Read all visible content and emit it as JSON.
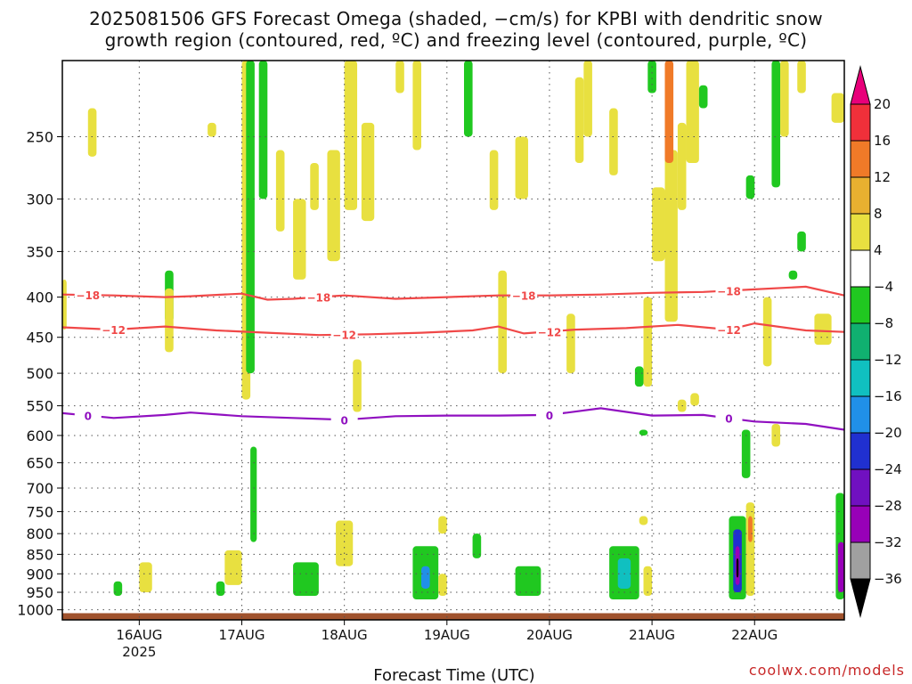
{
  "title": {
    "line1": "2025081506 GFS Forecast Omega (shaded, −cm/s) for KPBI with dendritic snow",
    "line2": "growth region (contoured, red, ºC) and freezing level (contoured, purple, ºC)"
  },
  "xlabel": "Forecast Time (UTC)",
  "credit": "coolwx.com/models",
  "chart_data": {
    "type": "heatmap",
    "title": "2025081506 GFS Forecast Omega (shaded, −cm/s) for KPBI with dendritic snow growth region (contoured, red, ºC) and freezing level (contoured, purple, ºC)",
    "xlabel": "Forecast Time (UTC)",
    "ylabel": "",
    "x_axis": {
      "type": "time",
      "range": [
        "2025-08-15T06:00",
        "2025-08-22T21:00"
      ],
      "tick_labels": [
        "16AUG",
        "17AUG",
        "18AUG",
        "19AUG",
        "20AUG",
        "21AUG",
        "22AUG"
      ],
      "tick_values": [
        "2025-08-16T00:00",
        "2025-08-17T00:00",
        "2025-08-18T00:00",
        "2025-08-19T00:00",
        "2025-08-20T00:00",
        "2025-08-21T00:00",
        "2025-08-22T00:00"
      ],
      "year_label": "2025"
    },
    "y_axis": {
      "type": "log-pressure",
      "units": "hPa",
      "range": [
        1030,
        200
      ],
      "tick_labels": [
        "250",
        "300",
        "350",
        "400",
        "450",
        "500",
        "550",
        "600",
        "650",
        "700",
        "750",
        "800",
        "850",
        "900",
        "950",
        "1000"
      ],
      "tick_values": [
        250,
        300,
        350,
        400,
        450,
        500,
        550,
        600,
        650,
        700,
        750,
        800,
        850,
        900,
        950,
        1000
      ]
    },
    "grid": true,
    "colorbar": {
      "labels": [
        "20",
        "16",
        "12",
        "8",
        "4",
        "−4",
        "−8",
        "−12",
        "−16",
        "−20",
        "−24",
        "−28",
        "−32",
        "−36"
      ],
      "colors": [
        "#e8007a",
        "#f0303a",
        "#f07a28",
        "#e8b030",
        "#e8e040",
        "#ffffff",
        "#20c820",
        "#10b070",
        "#10c0c0",
        "#2090e8",
        "#2030d0",
        "#7010c0",
        "#9800b8",
        "#a0a0a0",
        "#000000"
      ],
      "extend": "both"
    },
    "contours": [
      {
        "name": "-18",
        "color": "#f04848",
        "level_label": "−18",
        "points": [
          [
            "2025-08-15T06:00",
            397
          ],
          [
            "2025-08-15T18:00",
            398
          ],
          [
            "2025-08-16T06:00",
            400
          ],
          [
            "2025-08-16T12:00",
            399
          ],
          [
            "2025-08-17T00:00",
            396
          ],
          [
            "2025-08-17T06:00",
            403
          ],
          [
            "2025-08-17T12:00",
            402
          ],
          [
            "2025-08-18T00:00",
            398
          ],
          [
            "2025-08-18T12:00",
            402
          ],
          [
            "2025-08-19T00:00",
            400
          ],
          [
            "2025-08-19T12:00",
            398
          ],
          [
            "2025-08-20T00:00",
            398
          ],
          [
            "2025-08-20T12:00",
            397
          ],
          [
            "2025-08-21T00:00",
            395
          ],
          [
            "2025-08-21T12:00",
            394
          ],
          [
            "2025-08-22T00:00",
            391
          ],
          [
            "2025-08-22T12:00",
            388
          ],
          [
            "2025-08-22T21:00",
            398
          ]
        ],
        "labels_at": [
          "2025-08-15T12:00",
          "2025-08-17T18:00",
          "2025-08-19T18:00",
          "2025-08-21T18:00"
        ]
      },
      {
        "name": "-12",
        "color": "#f04848",
        "level_label": "−12",
        "points": [
          [
            "2025-08-15T06:00",
            437
          ],
          [
            "2025-08-15T18:00",
            440
          ],
          [
            "2025-08-16T06:00",
            436
          ],
          [
            "2025-08-16T18:00",
            441
          ],
          [
            "2025-08-17T06:00",
            444
          ],
          [
            "2025-08-17T18:00",
            447
          ],
          [
            "2025-08-18T06:00",
            446
          ],
          [
            "2025-08-18T18:00",
            444
          ],
          [
            "2025-08-19T06:00",
            441
          ],
          [
            "2025-08-19T12:00",
            436
          ],
          [
            "2025-08-19T18:00",
            445
          ],
          [
            "2025-08-20T06:00",
            440
          ],
          [
            "2025-08-20T18:00",
            438
          ],
          [
            "2025-08-21T06:00",
            434
          ],
          [
            "2025-08-21T18:00",
            440
          ],
          [
            "2025-08-22T00:00",
            432
          ],
          [
            "2025-08-22T12:00",
            441
          ],
          [
            "2025-08-22T21:00",
            443
          ]
        ],
        "labels_at": [
          "2025-08-15T18:00",
          "2025-08-18T00:00",
          "2025-08-20T00:00",
          "2025-08-21T18:00"
        ]
      },
      {
        "name": "0",
        "color": "#9010c0",
        "level_label": "0",
        "points": [
          [
            "2025-08-15T06:00",
            562
          ],
          [
            "2025-08-15T18:00",
            570
          ],
          [
            "2025-08-16T06:00",
            565
          ],
          [
            "2025-08-16T12:00",
            561
          ],
          [
            "2025-08-17T00:00",
            567
          ],
          [
            "2025-08-17T12:00",
            570
          ],
          [
            "2025-08-18T00:00",
            573
          ],
          [
            "2025-08-18T12:00",
            567
          ],
          [
            "2025-08-19T00:00",
            566
          ],
          [
            "2025-08-19T12:00",
            566
          ],
          [
            "2025-08-20T00:00",
            565
          ],
          [
            "2025-08-20T12:00",
            554
          ],
          [
            "2025-08-21T00:00",
            566
          ],
          [
            "2025-08-21T12:00",
            565
          ],
          [
            "2025-08-22T00:00",
            576
          ],
          [
            "2025-08-22T12:00",
            580
          ],
          [
            "2025-08-22T21:00",
            590
          ]
        ],
        "labels_at": [
          "2025-08-15T12:00",
          "2025-08-18T00:00",
          "2025-08-20T00:00",
          "2025-08-21T18:00"
        ]
      }
    ],
    "shaded_regions": [
      {
        "t0": "2025-08-16T16:00",
        "t1": "2025-08-16T18:00",
        "p0": 250,
        "p1": 240,
        "color": "#e8e040"
      },
      {
        "t0": "2025-08-15T12:00",
        "t1": "2025-08-15T14:00",
        "p0": 265,
        "p1": 230,
        "color": "#e8e040"
      },
      {
        "t0": "2025-08-16T06:00",
        "t1": "2025-08-16T08:00",
        "p0": 430,
        "p1": 370,
        "color": "#20c820"
      },
      {
        "t0": "2025-08-16T06:00",
        "t1": "2025-08-16T08:00",
        "p0": 470,
        "p1": 390,
        "color": "#e8e040"
      },
      {
        "t0": "2025-08-17T00:00",
        "t1": "2025-08-17T02:00",
        "p0": 540,
        "p1": 200,
        "color": "#e8e040"
      },
      {
        "t0": "2025-08-17T01:00",
        "t1": "2025-08-17T03:00",
        "p0": 500,
        "p1": 200,
        "color": "#20c820"
      },
      {
        "t0": "2025-08-17T02:00",
        "t1": "2025-08-17T03:30",
        "p0": 820,
        "p1": 620,
        "color": "#20c820"
      },
      {
        "t0": "2025-08-17T04:00",
        "t1": "2025-08-17T06:00",
        "p0": 300,
        "p1": 200,
        "color": "#20c820"
      },
      {
        "t0": "2025-08-17T08:00",
        "t1": "2025-08-17T10:00",
        "p0": 330,
        "p1": 260,
        "color": "#e8e040"
      },
      {
        "t0": "2025-08-17T12:00",
        "t1": "2025-08-17T15:00",
        "p0": 380,
        "p1": 300,
        "color": "#e8e040"
      },
      {
        "t0": "2025-08-17T16:00",
        "t1": "2025-08-17T18:00",
        "p0": 310,
        "p1": 270,
        "color": "#e8e040"
      },
      {
        "t0": "2025-08-17T20:00",
        "t1": "2025-08-17T23:00",
        "p0": 360,
        "p1": 260,
        "color": "#e8e040"
      },
      {
        "t0": "2025-08-18T00:00",
        "t1": "2025-08-18T03:00",
        "p0": 310,
        "p1": 200,
        "color": "#e8e040"
      },
      {
        "t0": "2025-08-18T04:00",
        "t1": "2025-08-18T07:00",
        "p0": 320,
        "p1": 240,
        "color": "#e8e040"
      },
      {
        "t0": "2025-08-18T02:00",
        "t1": "2025-08-18T04:00",
        "p0": 560,
        "p1": 480,
        "color": "#e8e040"
      },
      {
        "t0": "2025-08-18T12:00",
        "t1": "2025-08-18T14:00",
        "p0": 220,
        "p1": 200,
        "color": "#e8e040"
      },
      {
        "t0": "2025-08-18T16:00",
        "t1": "2025-08-18T18:00",
        "p0": 260,
        "p1": 200,
        "color": "#e8e040"
      },
      {
        "t0": "2025-08-19T04:00",
        "t1": "2025-08-19T06:00",
        "p0": 250,
        "p1": 200,
        "color": "#20c820"
      },
      {
        "t0": "2025-08-19T10:00",
        "t1": "2025-08-19T12:00",
        "p0": 310,
        "p1": 260,
        "color": "#e8e040"
      },
      {
        "t0": "2025-08-19T12:00",
        "t1": "2025-08-19T14:00",
        "p0": 500,
        "p1": 370,
        "color": "#e8e040"
      },
      {
        "t0": "2025-08-19T16:00",
        "t1": "2025-08-19T19:00",
        "p0": 300,
        "p1": 250,
        "color": "#e8e040"
      },
      {
        "t0": "2025-08-20T04:00",
        "t1": "2025-08-20T06:00",
        "p0": 500,
        "p1": 420,
        "color": "#e8e040"
      },
      {
        "t0": "2025-08-20T06:00",
        "t1": "2025-08-20T08:00",
        "p0": 270,
        "p1": 210,
        "color": "#e8e040"
      },
      {
        "t0": "2025-08-20T08:00",
        "t1": "2025-08-20T10:00",
        "p0": 250,
        "p1": 200,
        "color": "#e8e040"
      },
      {
        "t0": "2025-08-20T14:00",
        "t1": "2025-08-20T16:00",
        "p0": 280,
        "p1": 230,
        "color": "#e8e040"
      },
      {
        "t0": "2025-08-20T20:00",
        "t1": "2025-08-20T22:00",
        "p0": 520,
        "p1": 490,
        "color": "#20c820"
      },
      {
        "t0": "2025-08-20T21:00",
        "t1": "2025-08-20T23:00",
        "p0": 600,
        "p1": 590,
        "color": "#20c820"
      },
      {
        "t0": "2025-08-20T22:00",
        "t1": "2025-08-21T00:00",
        "p0": 520,
        "p1": 400,
        "color": "#e8e040"
      },
      {
        "t0": "2025-08-20T23:00",
        "t1": "2025-08-21T01:00",
        "p0": 220,
        "p1": 200,
        "color": "#20c820"
      },
      {
        "t0": "2025-08-21T00:00",
        "t1": "2025-08-21T03:00",
        "p0": 360,
        "p1": 290,
        "color": "#e8e040"
      },
      {
        "t0": "2025-08-21T03:00",
        "t1": "2025-08-21T06:00",
        "p0": 430,
        "p1": 260,
        "color": "#e8e040"
      },
      {
        "t0": "2025-08-21T06:00",
        "t1": "2025-08-21T08:00",
        "p0": 310,
        "p1": 240,
        "color": "#e8e040"
      },
      {
        "t0": "2025-08-21T08:00",
        "t1": "2025-08-21T11:00",
        "p0": 270,
        "p1": 200,
        "color": "#e8e040"
      },
      {
        "t0": "2025-08-21T03:00",
        "t1": "2025-08-21T05:00",
        "p0": 270,
        "p1": 200,
        "color": "#f07a28"
      },
      {
        "t0": "2025-08-21T06:00",
        "t1": "2025-08-21T08:00",
        "p0": 560,
        "p1": 540,
        "color": "#e8e040"
      },
      {
        "t0": "2025-08-21T09:00",
        "t1": "2025-08-21T11:00",
        "p0": 550,
        "p1": 530,
        "color": "#e8e040"
      },
      {
        "t0": "2025-08-21T11:00",
        "t1": "2025-08-21T13:00",
        "p0": 230,
        "p1": 215,
        "color": "#20c820"
      },
      {
        "t0": "2025-08-21T22:00",
        "t1": "2025-08-22T00:00",
        "p0": 300,
        "p1": 280,
        "color": "#20c820"
      },
      {
        "t0": "2025-08-21T21:00",
        "t1": "2025-08-21T23:00",
        "p0": 680,
        "p1": 590,
        "color": "#20c820"
      },
      {
        "t0": "2025-08-22T02:00",
        "t1": "2025-08-22T04:00",
        "p0": 490,
        "p1": 400,
        "color": "#e8e040"
      },
      {
        "t0": "2025-08-22T04:00",
        "t1": "2025-08-22T06:00",
        "p0": 290,
        "p1": 200,
        "color": "#20c820"
      },
      {
        "t0": "2025-08-22T06:00",
        "t1": "2025-08-22T08:00",
        "p0": 250,
        "p1": 200,
        "color": "#e8e040"
      },
      {
        "t0": "2025-08-22T04:00",
        "t1": "2025-08-22T06:00",
        "p0": 620,
        "p1": 580,
        "color": "#e8e040"
      },
      {
        "t0": "2025-08-22T08:00",
        "t1": "2025-08-22T10:00",
        "p0": 380,
        "p1": 370,
        "color": "#20c820"
      },
      {
        "t0": "2025-08-22T10:00",
        "t1": "2025-08-22T12:00",
        "p0": 350,
        "p1": 330,
        "color": "#20c820"
      },
      {
        "t0": "2025-08-22T14:00",
        "t1": "2025-08-22T18:00",
        "p0": 460,
        "p1": 420,
        "color": "#e8e040"
      },
      {
        "t0": "2025-08-22T10:00",
        "t1": "2025-08-22T12:00",
        "p0": 220,
        "p1": 200,
        "color": "#e8e040"
      },
      {
        "t0": "2025-08-22T18:00",
        "t1": "2025-08-22T21:00",
        "p0": 240,
        "p1": 220,
        "color": "#e8e040"
      },
      {
        "t0": "2025-08-15T06:00",
        "t1": "2025-08-15T07:00",
        "p0": 440,
        "p1": 380,
        "color": "#e8e040"
      },
      {
        "t0": "2025-08-15T18:00",
        "t1": "2025-08-15T20:00",
        "p0": 960,
        "p1": 920,
        "color": "#20c820"
      },
      {
        "t0": "2025-08-16T00:00",
        "t1": "2025-08-16T03:00",
        "p0": 950,
        "p1": 870,
        "color": "#e8e040"
      },
      {
        "t0": "2025-08-16T18:00",
        "t1": "2025-08-16T20:00",
        "p0": 960,
        "p1": 920,
        "color": "#20c820"
      },
      {
        "t0": "2025-08-16T20:00",
        "t1": "2025-08-17T00:00",
        "p0": 930,
        "p1": 840,
        "color": "#e8e040"
      },
      {
        "t0": "2025-08-17T12:00",
        "t1": "2025-08-17T18:00",
        "p0": 960,
        "p1": 870,
        "color": "#20c820"
      },
      {
        "t0": "2025-08-17T22:00",
        "t1": "2025-08-18T02:00",
        "p0": 880,
        "p1": 770,
        "color": "#e8e040"
      },
      {
        "t0": "2025-08-18T16:00",
        "t1": "2025-08-18T22:00",
        "p0": 970,
        "p1": 830,
        "color": "#20c820"
      },
      {
        "t0": "2025-08-18T18:00",
        "t1": "2025-08-18T20:00",
        "p0": 940,
        "p1": 880,
        "color": "#2090e8"
      },
      {
        "t0": "2025-08-18T22:00",
        "t1": "2025-08-19T00:00",
        "p0": 960,
        "p1": 900,
        "color": "#e8e040"
      },
      {
        "t0": "2025-08-18T22:00",
        "t1": "2025-08-19T00:00",
        "p0": 800,
        "p1": 760,
        "color": "#e8e040"
      },
      {
        "t0": "2025-08-19T06:00",
        "t1": "2025-08-19T08:00",
        "p0": 860,
        "p1": 800,
        "color": "#20c820"
      },
      {
        "t0": "2025-08-19T16:00",
        "t1": "2025-08-19T22:00",
        "p0": 960,
        "p1": 880,
        "color": "#20c820"
      },
      {
        "t0": "2025-08-20T14:00",
        "t1": "2025-08-20T21:00",
        "p0": 970,
        "p1": 830,
        "color": "#20c820"
      },
      {
        "t0": "2025-08-20T16:00",
        "t1": "2025-08-20T19:00",
        "p0": 940,
        "p1": 860,
        "color": "#10c0c0"
      },
      {
        "t0": "2025-08-20T22:00",
        "t1": "2025-08-21T00:00",
        "p0": 960,
        "p1": 880,
        "color": "#e8e040"
      },
      {
        "t0": "2025-08-20T21:00",
        "t1": "2025-08-20T23:00",
        "p0": 780,
        "p1": 760,
        "color": "#e8e040"
      },
      {
        "t0": "2025-08-21T18:00",
        "t1": "2025-08-21T22:00",
        "p0": 970,
        "p1": 760,
        "color": "#20c820"
      },
      {
        "t0": "2025-08-21T19:00",
        "t1": "2025-08-21T21:00",
        "p0": 950,
        "p1": 790,
        "color": "#2030d0"
      },
      {
        "t0": "2025-08-21T19:30",
        "t1": "2025-08-21T20:30",
        "p0": 930,
        "p1": 830,
        "color": "#9800b8"
      },
      {
        "t0": "2025-08-21T19:45",
        "t1": "2025-08-21T20:15",
        "p0": 910,
        "p1": 860,
        "color": "#000000"
      },
      {
        "t0": "2025-08-21T22:00",
        "t1": "2025-08-22T00:00",
        "p0": 960,
        "p1": 730,
        "color": "#e8e040"
      },
      {
        "t0": "2025-08-21T22:30",
        "t1": "2025-08-21T23:30",
        "p0": 820,
        "p1": 760,
        "color": "#f07a28"
      },
      {
        "t0": "2025-08-22T19:00",
        "t1": "2025-08-22T21:00",
        "p0": 970,
        "p1": 710,
        "color": "#20c820"
      },
      {
        "t0": "2025-08-22T19:30",
        "t1": "2025-08-22T21:00",
        "p0": 950,
        "p1": 820,
        "color": "#9800b8"
      }
    ],
    "surface_band": {
      "color": "#a0522d",
      "p_top": 1010
    }
  }
}
